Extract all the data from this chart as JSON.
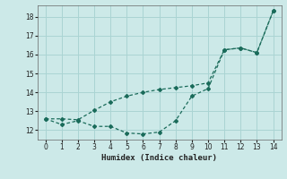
{
  "line1_x": [
    0,
    1,
    2,
    3,
    4,
    5,
    6,
    7,
    8,
    9,
    10,
    11,
    12,
    13,
    14
  ],
  "line1_y": [
    12.6,
    12.3,
    12.5,
    12.2,
    12.2,
    11.85,
    11.8,
    11.9,
    12.5,
    13.8,
    14.2,
    16.25,
    16.35,
    16.1,
    18.3
  ],
  "line2_x": [
    0,
    1,
    2,
    3,
    4,
    5,
    6,
    7,
    8,
    9,
    10,
    11,
    12,
    13,
    14
  ],
  "line2_y": [
    12.6,
    12.6,
    12.55,
    13.05,
    13.5,
    13.8,
    14.0,
    14.15,
    14.25,
    14.35,
    14.5,
    16.25,
    16.35,
    16.1,
    18.3
  ],
  "color": "#1a6b5a",
  "bg_color": "#cce9e8",
  "grid_color": "#aad4d3",
  "xlabel": "Humidex (Indice chaleur)",
  "xlim": [
    -0.5,
    14.5
  ],
  "ylim": [
    11.5,
    18.6
  ],
  "yticks": [
    12,
    13,
    14,
    15,
    16,
    17,
    18
  ],
  "xticks": [
    0,
    1,
    2,
    3,
    4,
    5,
    6,
    7,
    8,
    9,
    10,
    11,
    12,
    13,
    14
  ]
}
